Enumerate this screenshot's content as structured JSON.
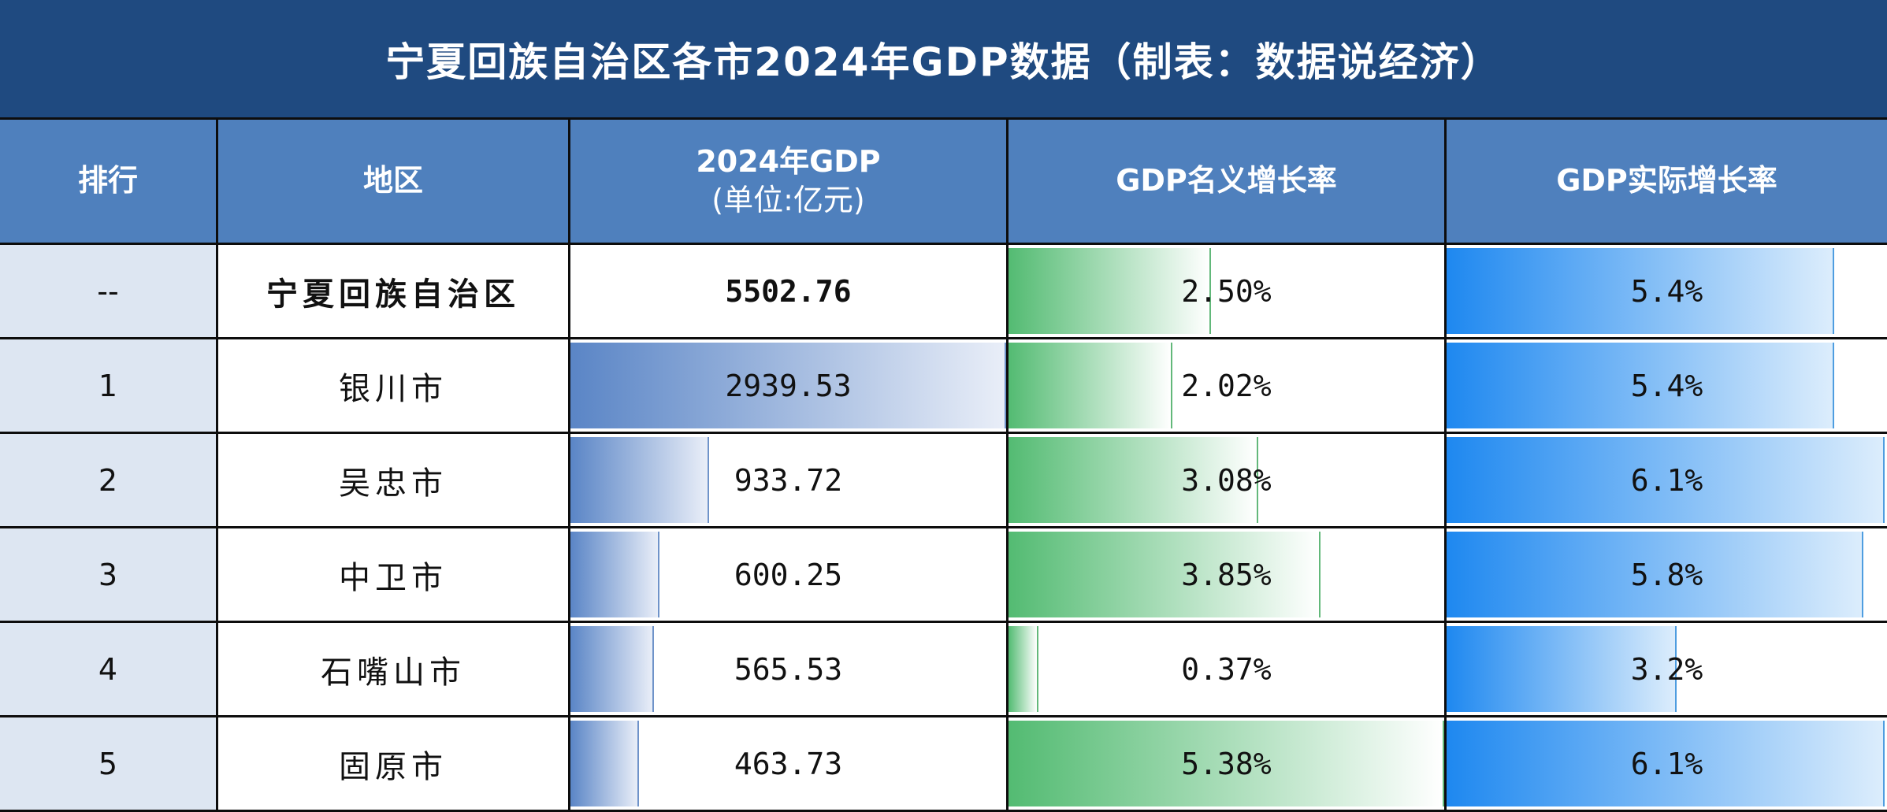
{
  "chart_data": {
    "type": "table",
    "title": "宁夏回族自治区各市2024年GDP数据（制表：数据说经济）",
    "columns": [
      "排行",
      "地区",
      "2024年GDP",
      "(单位:亿元)",
      "GDP名义增长率",
      "GDP实际增长率"
    ],
    "rows": [
      {
        "rank": "--",
        "region": "宁夏回族自治区",
        "gdp": 5502.76,
        "gdp_label": "5502.76",
        "nominal": 2.5,
        "nominal_label": "2.50%",
        "real": 5.4,
        "real_label": "5.4%"
      },
      {
        "rank": "1",
        "region": "银川市",
        "gdp": 2939.53,
        "gdp_label": "2939.53",
        "nominal": 2.02,
        "nominal_label": "2.02%",
        "real": 5.4,
        "real_label": "5.4%"
      },
      {
        "rank": "2",
        "region": "吴忠市",
        "gdp": 933.72,
        "gdp_label": "933.72",
        "nominal": 3.08,
        "nominal_label": "3.08%",
        "real": 6.1,
        "real_label": "6.1%"
      },
      {
        "rank": "3",
        "region": "中卫市",
        "gdp": 600.25,
        "gdp_label": "600.25",
        "nominal": 3.85,
        "nominal_label": "3.85%",
        "real": 5.8,
        "real_label": "5.8%"
      },
      {
        "rank": "4",
        "region": "石嘴山市",
        "gdp": 565.53,
        "gdp_label": "565.53",
        "nominal": 0.37,
        "nominal_label": "0.37%",
        "real": 3.2,
        "real_label": "3.2%"
      },
      {
        "rank": "5",
        "region": "固原市",
        "gdp": 463.73,
        "gdp_label": "463.73",
        "nominal": 5.38,
        "nominal_label": "5.38%",
        "real": 6.1,
        "real_label": "6.1%"
      }
    ],
    "colors": {
      "title_bg": "#1f4a80",
      "header_bg": "#4f80bd",
      "rank_bg": "#dde6f2",
      "gdp_bar": "#5a85c6",
      "nominal_bar": "#53bb72",
      "real_bar": "#1e88f0"
    }
  }
}
